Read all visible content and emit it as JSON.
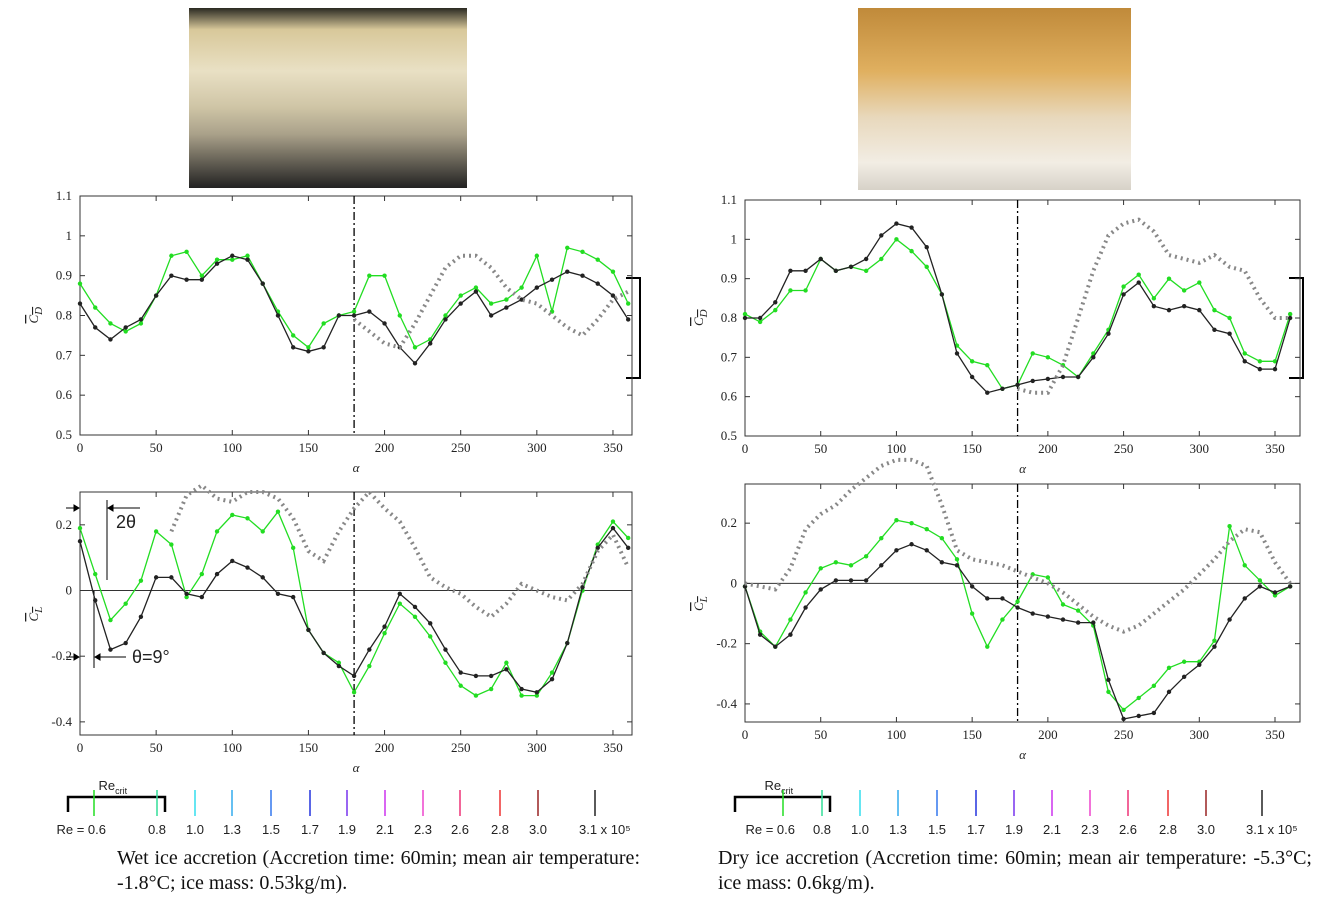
{
  "chart_data": [
    {
      "type": "line",
      "xlabel": "α",
      "ylabel": {
        "base": "C",
        "sub": "D"
      },
      "xlim": [
        0,
        362.5
      ],
      "ylim": [
        0.5,
        1.1
      ],
      "xticks": [
        0,
        50,
        100,
        150,
        200,
        250,
        300,
        350
      ],
      "yticks": [
        0.5,
        0.6,
        0.7,
        0.8,
        0.9,
        1,
        1.1
      ],
      "vline": 180,
      "zero_line": false,
      "x": [
        0,
        10,
        20,
        30,
        40,
        50,
        60,
        70,
        80,
        90,
        100,
        110,
        120,
        130,
        140,
        150,
        160,
        170,
        180,
        190,
        200,
        210,
        220,
        230,
        240,
        250,
        260,
        270,
        280,
        290,
        300,
        310,
        320,
        330,
        340,
        350,
        360
      ],
      "series": [
        {
          "color": "#22dd22",
          "markers": true,
          "values": [
            0.88,
            0.82,
            0.78,
            0.76,
            0.78,
            0.85,
            0.95,
            0.96,
            0.9,
            0.94,
            0.94,
            0.95,
            0.88,
            0.81,
            0.75,
            0.72,
            0.78,
            0.8,
            0.81,
            0.9,
            0.9,
            0.8,
            0.72,
            0.74,
            0.8,
            0.85,
            0.87,
            0.83,
            0.84,
            0.87,
            0.95,
            0.81,
            0.97,
            0.96,
            0.94,
            0.91,
            0.83
          ]
        },
        {
          "color": "#222222",
          "markers": true,
          "values": [
            0.83,
            0.77,
            0.74,
            0.77,
            0.79,
            0.85,
            0.9,
            0.89,
            0.89,
            0.93,
            0.95,
            0.94,
            0.88,
            0.8,
            0.72,
            0.71,
            0.72,
            0.8,
            0.8,
            0.81,
            0.78,
            0.72,
            0.68,
            0.73,
            0.79,
            0.83,
            0.86,
            0.8,
            0.82,
            0.84,
            0.87,
            0.89,
            0.91,
            0.9,
            0.88,
            0.85,
            0.79
          ]
        },
        {
          "color": "#888888",
          "markers": false,
          "dotted": true,
          "values": [
            null,
            null,
            null,
            null,
            null,
            null,
            null,
            null,
            null,
            null,
            null,
            null,
            null,
            null,
            null,
            null,
            null,
            null,
            0.79,
            0.76,
            0.73,
            0.72,
            0.78,
            0.85,
            0.92,
            0.95,
            0.95,
            0.92,
            0.87,
            0.84,
            0.83,
            0.8,
            0.77,
            0.75,
            0.79,
            0.84,
            0.86
          ]
        }
      ]
    },
    {
      "type": "line",
      "xlabel": "α",
      "ylabel": {
        "base": "C",
        "sub": "L"
      },
      "xlim": [
        0,
        362.5
      ],
      "ylim": [
        -0.44,
        0.3
      ],
      "xticks": [
        0,
        50,
        100,
        150,
        200,
        250,
        300,
        350
      ],
      "yticks": [
        -0.4,
        -0.2,
        0,
        0.2
      ],
      "vline": 180,
      "zero_line": true,
      "annotations": [
        "2θ",
        "θ=9°"
      ],
      "x": [
        0,
        10,
        20,
        30,
        40,
        50,
        60,
        70,
        80,
        90,
        100,
        110,
        120,
        130,
        140,
        150,
        160,
        170,
        180,
        190,
        200,
        210,
        220,
        230,
        240,
        250,
        260,
        270,
        280,
        290,
        300,
        310,
        320,
        330,
        340,
        350,
        360
      ],
      "series": [
        {
          "color": "#22dd22",
          "markers": true,
          "values": [
            0.19,
            0.05,
            -0.09,
            -0.04,
            0.03,
            0.18,
            0.14,
            -0.02,
            0.05,
            0.18,
            0.23,
            0.22,
            0.18,
            0.24,
            0.13,
            -0.12,
            -0.19,
            -0.22,
            -0.31,
            -0.23,
            -0.13,
            -0.04,
            -0.08,
            -0.14,
            -0.22,
            -0.29,
            -0.32,
            -0.3,
            -0.22,
            -0.32,
            -0.32,
            -0.25,
            -0.16,
            0,
            0.14,
            0.21,
            0.16
          ]
        },
        {
          "color": "#222222",
          "markers": true,
          "values": [
            0.15,
            -0.03,
            -0.18,
            -0.16,
            -0.08,
            0.04,
            0.04,
            -0.01,
            -0.02,
            0.05,
            0.09,
            0.07,
            0.04,
            -0.01,
            -0.02,
            -0.12,
            -0.19,
            -0.23,
            -0.26,
            -0.18,
            -0.11,
            -0.01,
            -0.05,
            -0.1,
            -0.18,
            -0.25,
            -0.26,
            -0.26,
            -0.24,
            -0.3,
            -0.31,
            -0.27,
            -0.16,
            0.01,
            0.13,
            0.19,
            0.13
          ]
        },
        {
          "color": "#888888",
          "markers": false,
          "dotted": true,
          "values": [
            null,
            null,
            null,
            null,
            null,
            null,
            0.18,
            0.29,
            0.32,
            0.28,
            0.27,
            0.3,
            0.3,
            0.28,
            0.22,
            0.12,
            0.09,
            0.18,
            0.25,
            0.3,
            0.25,
            0.21,
            0.13,
            0.04,
            0.01,
            -0.01,
            -0.05,
            -0.08,
            -0.04,
            0.02,
            0,
            -0.02,
            -0.03,
            0.02,
            0.12,
            0.17,
            0.07
          ]
        }
      ]
    },
    {
      "type": "line",
      "xlabel": "α",
      "ylabel": {
        "base": "C",
        "sub": "D"
      },
      "xlim": [
        0,
        366.5
      ],
      "ylim": [
        0.5,
        1.1
      ],
      "xticks": [
        0,
        50,
        100,
        150,
        200,
        250,
        300,
        350
      ],
      "yticks": [
        0.5,
        0.6,
        0.7,
        0.8,
        0.9,
        1,
        1.1
      ],
      "vline": 180,
      "zero_line": false,
      "x": [
        0,
        10,
        20,
        30,
        40,
        50,
        60,
        70,
        80,
        90,
        100,
        110,
        120,
        130,
        140,
        150,
        160,
        170,
        180,
        190,
        200,
        210,
        220,
        230,
        240,
        250,
        260,
        270,
        280,
        290,
        300,
        310,
        320,
        330,
        340,
        350,
        360
      ],
      "series": [
        {
          "color": "#22dd22",
          "markers": true,
          "values": [
            0.81,
            0.79,
            0.82,
            0.87,
            0.87,
            0.95,
            0.92,
            0.93,
            0.92,
            0.95,
            1,
            0.97,
            0.93,
            0.86,
            0.73,
            0.69,
            0.68,
            0.62,
            0.63,
            0.71,
            0.7,
            0.68,
            0.65,
            0.71,
            0.77,
            0.88,
            0.91,
            0.85,
            0.9,
            0.87,
            0.89,
            0.82,
            0.8,
            0.71,
            0.69,
            0.69,
            0.81
          ]
        },
        {
          "color": "#222222",
          "markers": true,
          "values": [
            0.8,
            0.8,
            0.84,
            0.92,
            0.92,
            0.95,
            0.92,
            0.93,
            0.95,
            1.01,
            1.04,
            1.03,
            0.98,
            0.86,
            0.71,
            0.65,
            0.61,
            0.62,
            0.63,
            0.64,
            0.645,
            0.65,
            0.65,
            0.7,
            0.76,
            0.86,
            0.89,
            0.83,
            0.82,
            0.83,
            0.82,
            0.77,
            0.76,
            0.69,
            0.67,
            0.67,
            0.8
          ]
        },
        {
          "color": "#888888",
          "markers": false,
          "dotted": true,
          "values": [
            null,
            null,
            null,
            null,
            null,
            null,
            null,
            null,
            null,
            null,
            null,
            null,
            null,
            null,
            null,
            null,
            null,
            null,
            0.62,
            0.61,
            0.61,
            0.68,
            0.8,
            0.92,
            1.01,
            1.04,
            1.05,
            1.02,
            0.96,
            0.95,
            0.94,
            0.96,
            0.93,
            0.92,
            0.85,
            0.8,
            0.8
          ]
        }
      ]
    },
    {
      "type": "line",
      "xlabel": "α",
      "ylabel": {
        "base": "C",
        "sub": "L"
      },
      "xlim": [
        0,
        366.5
      ],
      "ylim": [
        -0.46,
        0.33
      ],
      "xticks": [
        0,
        50,
        100,
        150,
        200,
        250,
        300,
        350
      ],
      "yticks": [
        -0.4,
        -0.2,
        0,
        0.2
      ],
      "vline": 180,
      "zero_line": true,
      "x": [
        0,
        10,
        20,
        30,
        40,
        50,
        60,
        70,
        80,
        90,
        100,
        110,
        120,
        130,
        140,
        150,
        160,
        170,
        180,
        190,
        200,
        210,
        220,
        230,
        240,
        250,
        260,
        270,
        280,
        290,
        300,
        310,
        320,
        330,
        340,
        350,
        360
      ],
      "series": [
        {
          "color": "#22dd22",
          "markers": true,
          "values": [
            -0.01,
            -0.16,
            -0.21,
            -0.12,
            -0.03,
            0.05,
            0.07,
            0.06,
            0.09,
            0.15,
            0.21,
            0.2,
            0.18,
            0.15,
            0.08,
            -0.1,
            -0.21,
            -0.12,
            -0.06,
            0.03,
            0.02,
            -0.07,
            -0.09,
            -0.14,
            -0.36,
            -0.42,
            -0.38,
            -0.34,
            -0.28,
            -0.26,
            -0.26,
            -0.19,
            0.19,
            0.06,
            0.01,
            -0.04,
            -0.01
          ]
        },
        {
          "color": "#222222",
          "markers": true,
          "values": [
            -0.01,
            -0.17,
            -0.21,
            -0.17,
            -0.08,
            -0.02,
            0.01,
            0.01,
            0.01,
            0.06,
            0.11,
            0.13,
            0.11,
            0.07,
            0.06,
            -0.01,
            -0.05,
            -0.05,
            -0.08,
            -0.1,
            -0.11,
            -0.12,
            -0.13,
            -0.13,
            -0.32,
            -0.45,
            -0.44,
            -0.43,
            -0.36,
            -0.31,
            -0.27,
            -0.21,
            -0.12,
            -0.05,
            -0.01,
            -0.03,
            -0.01
          ]
        },
        {
          "color": "#888888",
          "markers": false,
          "dotted": true,
          "values": [
            0,
            -0.01,
            -0.02,
            0.05,
            0.18,
            0.23,
            0.26,
            0.31,
            0.35,
            0.39,
            0.41,
            0.41,
            0.39,
            0.26,
            0.11,
            0.08,
            0.07,
            0.06,
            0.04,
            0.02,
            0,
            -0.03,
            -0.07,
            -0.11,
            -0.14,
            -0.16,
            -0.14,
            -0.1,
            -0.06,
            -0.02,
            0.03,
            0.08,
            0.14,
            0.18,
            0.17,
            0.07,
            0
          ]
        }
      ]
    }
  ],
  "legends": [
    {
      "crit": {
        "base": "Re",
        "sub": "crit"
      },
      "items": [
        {
          "label": "Re = 0.6",
          "color": "#22dd22"
        },
        {
          "label": "0.8",
          "color": "#33dd99"
        },
        {
          "label": "1.0",
          "color": "#33ddee"
        },
        {
          "label": "1.3",
          "color": "#33aaee"
        },
        {
          "label": "1.5",
          "color": "#3377ee"
        },
        {
          "label": "1.7",
          "color": "#2233dd"
        },
        {
          "label": "1.9",
          "color": "#7733ee"
        },
        {
          "label": "2.1",
          "color": "#cc33ee"
        },
        {
          "label": "2.3",
          "color": "#ee44cc"
        },
        {
          "label": "2.6",
          "color": "#ee3377"
        },
        {
          "label": "2.8",
          "color": "#ee3333"
        },
        {
          "label": "3.0",
          "color": "#992222"
        },
        {
          "label": "3.1 x 10⁵",
          "color": "#222222"
        }
      ]
    },
    {
      "crit": {
        "base": "Re",
        "sub": "crit"
      },
      "items": [
        {
          "label": "Re = 0.6",
          "color": "#22dd22"
        },
        {
          "label": "0.8",
          "color": "#33dd99"
        },
        {
          "label": "1.0",
          "color": "#33ddee"
        },
        {
          "label": "1.3",
          "color": "#33aaee"
        },
        {
          "label": "1.5",
          "color": "#3377ee"
        },
        {
          "label": "1.7",
          "color": "#2233dd"
        },
        {
          "label": "1.9",
          "color": "#7733ee"
        },
        {
          "label": "2.1",
          "color": "#cc33ee"
        },
        {
          "label": "2.3",
          "color": "#ee44cc"
        },
        {
          "label": "2.6",
          "color": "#ee3377"
        },
        {
          "label": "2.8",
          "color": "#ee3333"
        },
        {
          "label": "3.0",
          "color": "#992222"
        },
        {
          "label": "3.1 x 10⁵",
          "color": "#222222"
        }
      ]
    }
  ],
  "captions": [
    "Wet ice accretion (Accretion time: 60min; mean air temperature: -1.8°C; ice mass: 0.53kg/m).",
    "Dry ice accretion (Accretion time: 60min; mean air temperature: -5.3°C; ice mass: 0.6kg/m)."
  ]
}
